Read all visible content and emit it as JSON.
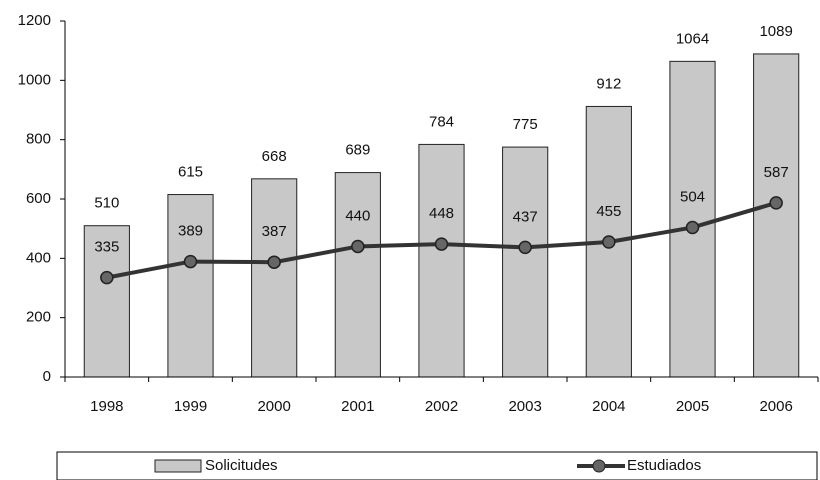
{
  "chart_data": {
    "type": "combo",
    "categories": [
      "1998",
      "1999",
      "2000",
      "2001",
      "2002",
      "2003",
      "2004",
      "2005",
      "2006"
    ],
    "series": [
      {
        "name": "Solicitudes",
        "type": "bar",
        "color": "#c8c8c8",
        "values": [
          510,
          615,
          668,
          689,
          784,
          775,
          912,
          1064,
          1089
        ]
      },
      {
        "name": "Estudiados",
        "type": "line",
        "color": "#333333",
        "values": [
          335,
          389,
          387,
          440,
          448,
          437,
          455,
          504,
          587
        ]
      }
    ],
    "ylim": [
      0,
      1200
    ],
    "yticks": [
      0,
      200,
      400,
      600,
      800,
      1000,
      1200
    ],
    "grid": false,
    "legend": "bottom"
  }
}
